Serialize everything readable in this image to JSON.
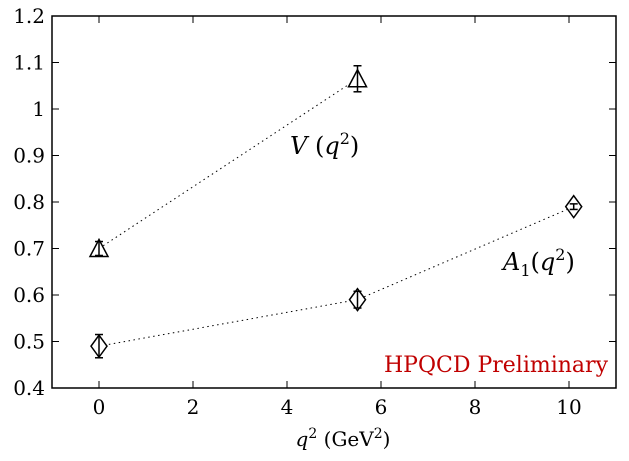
{
  "chart_data": {
    "type": "scatter",
    "title": "",
    "xlabel": "q² (GeV²)",
    "ylabel": "",
    "xlim": [
      -1,
      11
    ],
    "ylim": [
      0.4,
      1.2
    ],
    "x_ticks": [
      0,
      2,
      4,
      6,
      8,
      10
    ],
    "x_tick_labels": [
      "0",
      "2",
      "4",
      "6",
      "8",
      "10"
    ],
    "y_ticks": [
      0.4,
      0.5,
      0.6,
      0.7,
      0.8,
      0.9,
      1.0,
      1.1,
      1.2
    ],
    "y_tick_labels": [
      "0.4",
      "0.5",
      "0.6",
      "0.7",
      "0.8",
      "0.9",
      "1",
      "1.1",
      "1.2"
    ],
    "grid": false,
    "series": [
      {
        "name": "V(q²)",
        "marker": "triangle",
        "line": "dotted",
        "x": [
          0,
          5.5
        ],
        "y": [
          0.7,
          1.065
        ],
        "err": [
          0.015,
          0.028
        ]
      },
      {
        "name": "A₁(q²)",
        "marker": "diamond",
        "line": "dotted",
        "x": [
          0,
          5.5,
          10.1
        ],
        "y": [
          0.49,
          0.59,
          0.79
        ],
        "err": [
          0.025,
          0.018,
          0.006
        ]
      }
    ],
    "annotations": [
      {
        "text": "HPQCD Preliminary",
        "color": "#c00000"
      }
    ]
  }
}
